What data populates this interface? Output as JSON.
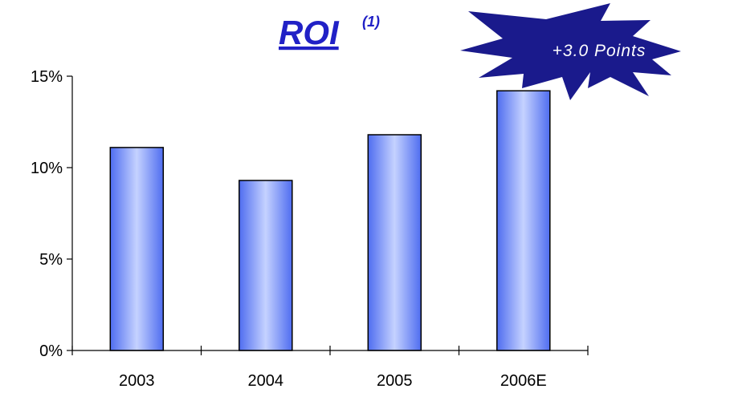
{
  "chart_data": {
    "type": "bar",
    "title": "ROI",
    "title_superscript": "(1)",
    "categories": [
      "2003",
      "2004",
      "2005",
      "2006E"
    ],
    "values": [
      11.1,
      9.3,
      11.8,
      14.2
    ],
    "ylim": [
      0,
      15
    ],
    "yticks": [
      0,
      5,
      10,
      15
    ],
    "ytick_labels": [
      "0%",
      "5%",
      "10%",
      "15%"
    ],
    "xlabel": "",
    "ylabel": "",
    "grid": false,
    "annotation": "+3.0 Points"
  },
  "colors": {
    "title": "#2121c6",
    "bar_dark": "#4f6df0",
    "bar_light": "#c5d2ff",
    "bar_stroke": "#000000",
    "axis": "#000000",
    "callout_fill": "#1a1a8c"
  }
}
